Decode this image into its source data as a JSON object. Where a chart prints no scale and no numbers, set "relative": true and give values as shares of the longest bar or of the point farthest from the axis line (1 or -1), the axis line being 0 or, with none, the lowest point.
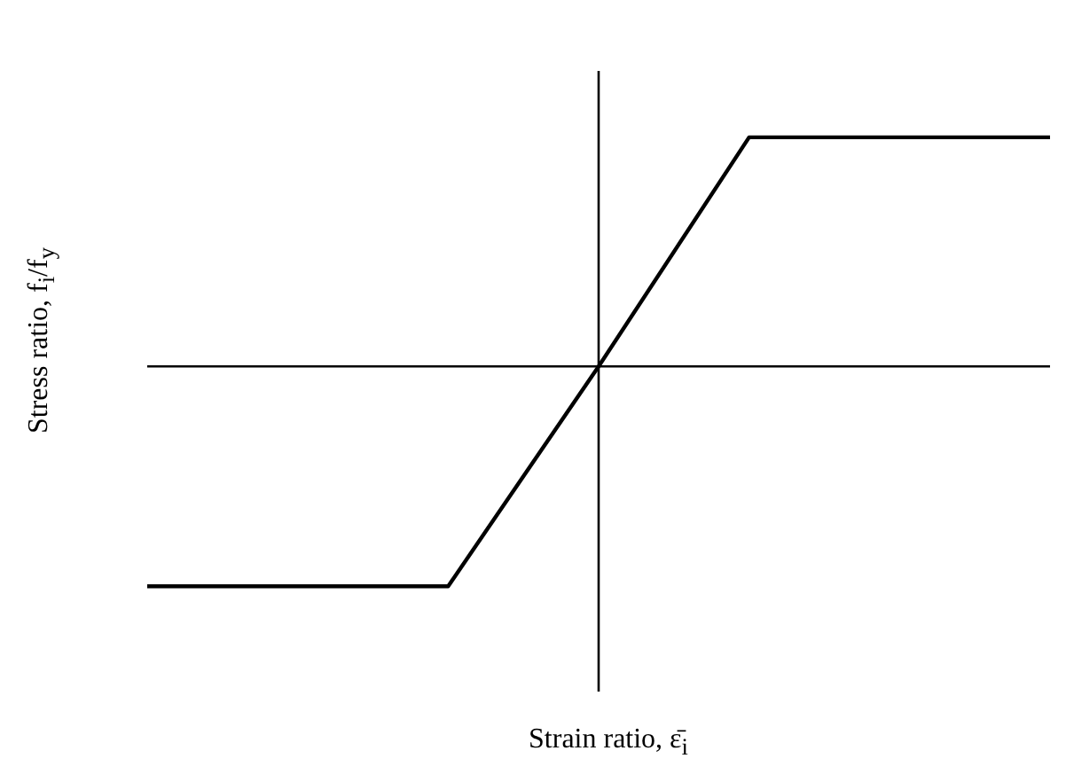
{
  "chart_data": {
    "type": "line",
    "relative": true,
    "xlabel": "Strain ratio, ε̄$_{i}$",
    "ylabel": "Stress ratio, f$_{i}$/f$_{y}$",
    "marker": "none",
    "line_style": "solid",
    "categories": [
      null,
      null,
      null,
      null,
      null,
      null,
      null
    ],
    "series": [
      {
        "color": "#000000",
        "values": [
          -0.96,
          -0.96,
          -0.96,
          0,
          1,
          1,
          1
        ]
      }
    ]
  }
}
